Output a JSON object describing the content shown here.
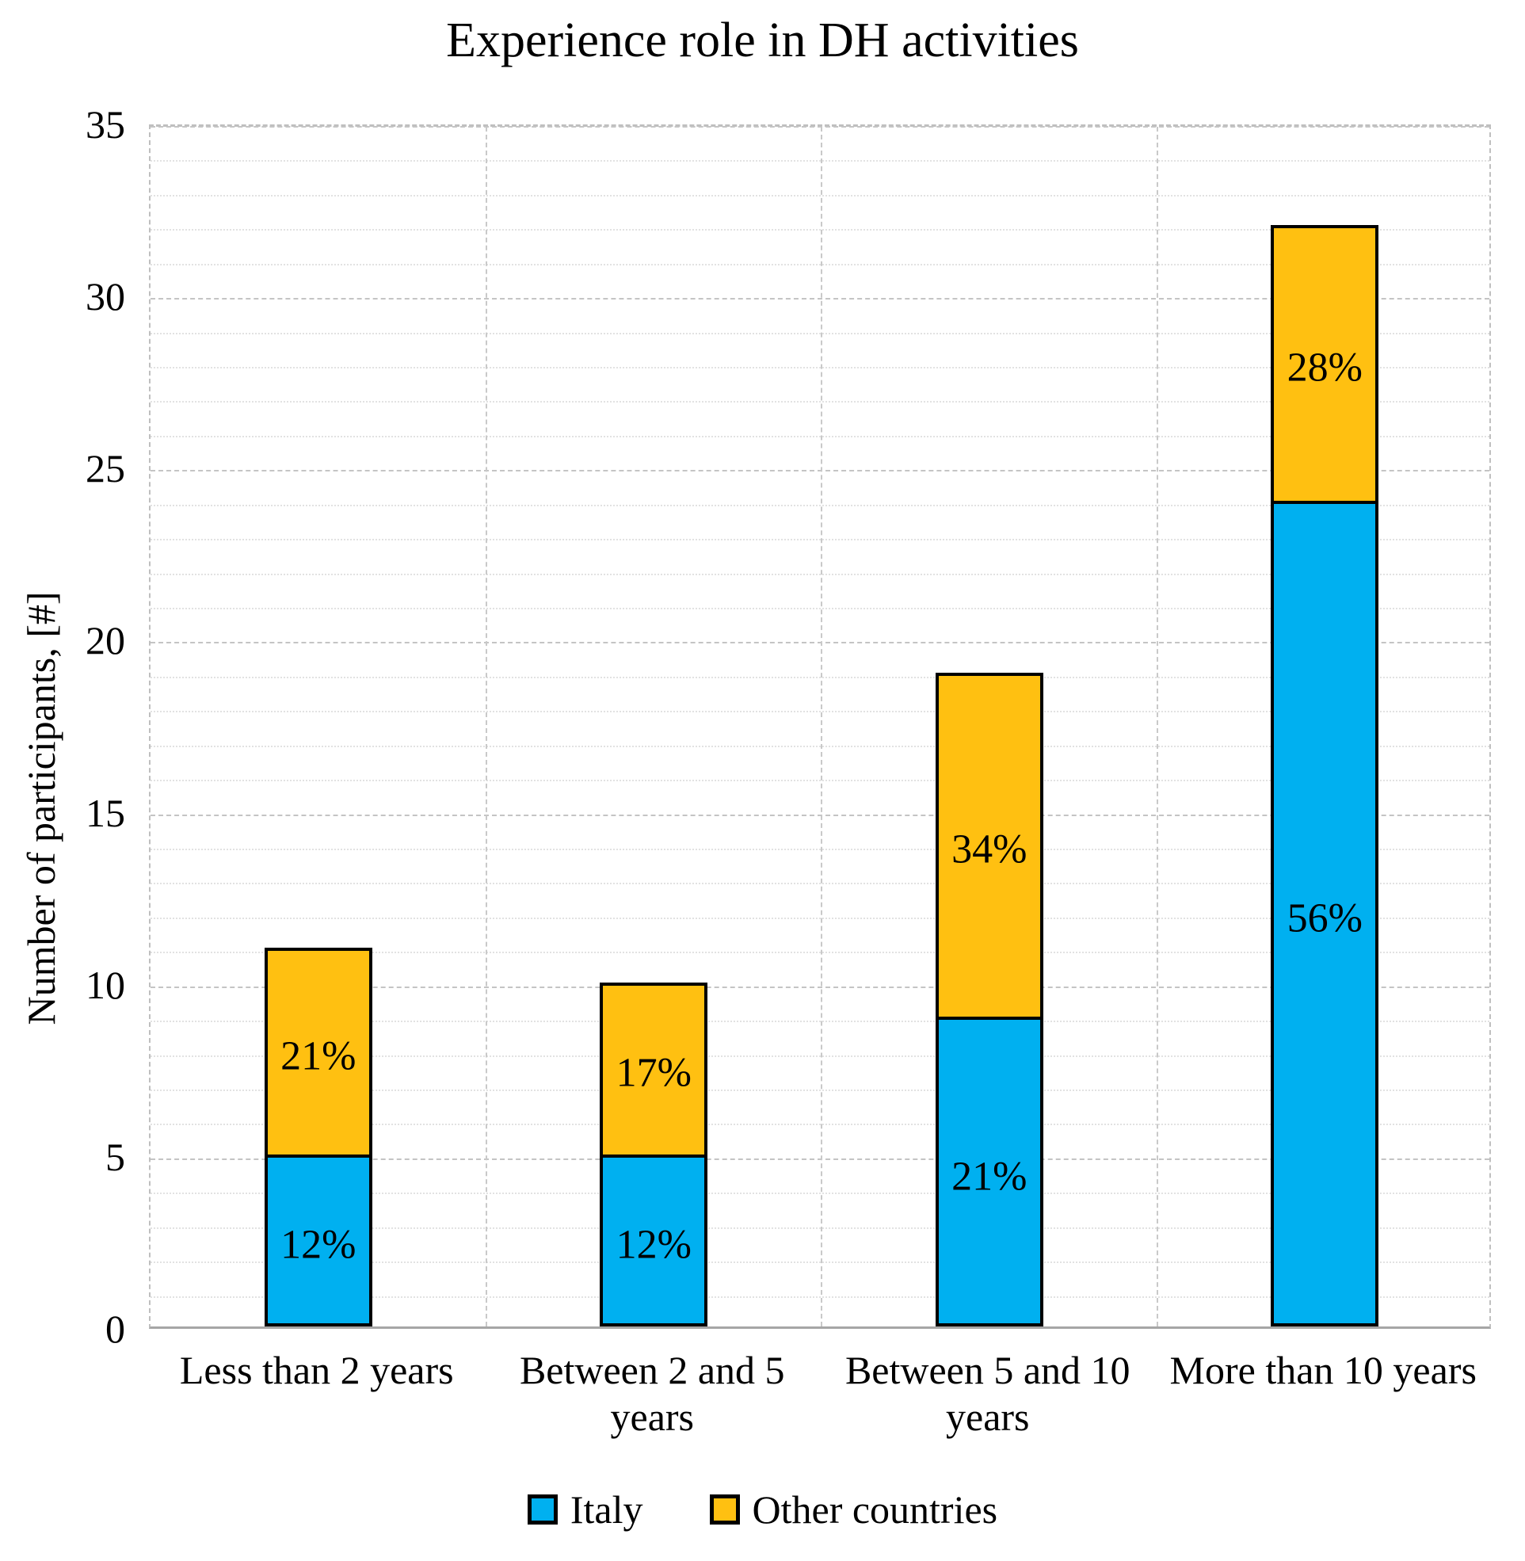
{
  "chart_data": {
    "type": "bar",
    "stacked": true,
    "title": "Experience role in DH activities",
    "ylabel": "Number of participants, [#]",
    "xlabel": "",
    "categories": [
      "Less than 2 years",
      "Between 2 and 5 years",
      "Between 5 and 10 years",
      "More than 10 years"
    ],
    "series": [
      {
        "name": "Italy",
        "color": "#00B0F0",
        "values": [
          5,
          5,
          9,
          24
        ],
        "data_labels": [
          "12%",
          "12%",
          "21%",
          "56%"
        ]
      },
      {
        "name": "Other countries",
        "color": "#FFC011",
        "values": [
          6,
          5,
          10,
          8
        ],
        "data_labels": [
          "21%",
          "17%",
          "34%",
          "28%"
        ]
      }
    ],
    "totals": [
      11,
      10,
      19,
      32
    ],
    "ylim": [
      0,
      35
    ],
    "ytick_step": 5,
    "yticks": [
      "0",
      "5",
      "10",
      "15",
      "20",
      "25",
      "30",
      "35"
    ],
    "minor_unit": 1,
    "grid": "major-dashed + minor-dotted horizontal, dashed vertical category separators",
    "legend_position": "bottom",
    "bar_border_color": "#000000",
    "label_color": "#000000"
  }
}
